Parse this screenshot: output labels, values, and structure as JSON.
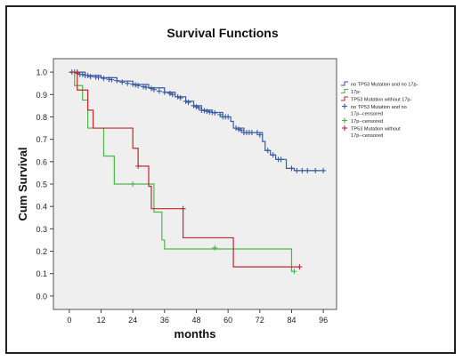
{
  "chart_data": {
    "type": "line",
    "title": "Survival Functions",
    "xlabel": "months",
    "ylabel": "Cum Survival",
    "xlim": [
      -6,
      101
    ],
    "ylim": [
      -0.06,
      1.06
    ],
    "xticks": [
      0,
      12,
      24,
      36,
      48,
      60,
      72,
      84,
      96
    ],
    "yticks": [
      0.0,
      0.1,
      0.2,
      0.3,
      0.4,
      0.5,
      0.6,
      0.7,
      0.8,
      0.9,
      1.0
    ],
    "plot_background": "#efefef",
    "legend_position": "right",
    "series": [
      {
        "name": "no TP53 Mutation and no 17p-",
        "censored_name": "no TP53 Mutation and no 17p--censored",
        "color": "#3b5ba5",
        "step_points": [
          [
            0,
            1.0
          ],
          [
            6,
            0.985
          ],
          [
            12,
            0.975
          ],
          [
            18,
            0.96
          ],
          [
            24,
            0.945
          ],
          [
            30,
            0.93
          ],
          [
            36,
            0.91
          ],
          [
            40,
            0.89
          ],
          [
            44,
            0.87
          ],
          [
            47,
            0.85
          ],
          [
            50,
            0.83
          ],
          [
            54,
            0.82
          ],
          [
            58,
            0.8
          ],
          [
            61,
            0.78
          ],
          [
            62,
            0.75
          ],
          [
            66,
            0.73
          ],
          [
            70,
            0.73
          ],
          [
            73,
            0.69
          ],
          [
            74,
            0.65
          ],
          [
            76,
            0.63
          ],
          [
            78,
            0.61
          ],
          [
            81,
            0.61
          ],
          [
            82,
            0.57
          ],
          [
            85,
            0.56
          ],
          [
            96,
            0.56
          ]
        ],
        "censored": [
          [
            1,
            1.0
          ],
          [
            2,
            1.0
          ],
          [
            3,
            0.995
          ],
          [
            4,
            0.99
          ],
          [
            5,
            0.99
          ],
          [
            6,
            0.985
          ],
          [
            7,
            0.985
          ],
          [
            8,
            0.98
          ],
          [
            10,
            0.978
          ],
          [
            11,
            0.977
          ],
          [
            13,
            0.972
          ],
          [
            15,
            0.968
          ],
          [
            16,
            0.966
          ],
          [
            18,
            0.962
          ],
          [
            20,
            0.955
          ],
          [
            22,
            0.95
          ],
          [
            24,
            0.946
          ],
          [
            25,
            0.943
          ],
          [
            26,
            0.94
          ],
          [
            28,
            0.935
          ],
          [
            29,
            0.932
          ],
          [
            31,
            0.927
          ],
          [
            32,
            0.922
          ],
          [
            34,
            0.915
          ],
          [
            36,
            0.91
          ],
          [
            38,
            0.905
          ],
          [
            39,
            0.9
          ],
          [
            41,
            0.89
          ],
          [
            42,
            0.885
          ],
          [
            44,
            0.87
          ],
          [
            45,
            0.865
          ],
          [
            47,
            0.85
          ],
          [
            48,
            0.845
          ],
          [
            49,
            0.84
          ],
          [
            50,
            0.83
          ],
          [
            51,
            0.828
          ],
          [
            52,
            0.825
          ],
          [
            53,
            0.822
          ],
          [
            54,
            0.82
          ],
          [
            55,
            0.818
          ],
          [
            57,
            0.81
          ],
          [
            58,
            0.8
          ],
          [
            59,
            0.8
          ],
          [
            60,
            0.8
          ],
          [
            63,
            0.75
          ],
          [
            64,
            0.745
          ],
          [
            65,
            0.74
          ],
          [
            66,
            0.73
          ],
          [
            67,
            0.73
          ],
          [
            68,
            0.73
          ],
          [
            69,
            0.73
          ],
          [
            71,
            0.73
          ],
          [
            72,
            0.72
          ],
          [
            75,
            0.65
          ],
          [
            77,
            0.63
          ],
          [
            79,
            0.61
          ],
          [
            80,
            0.61
          ],
          [
            84,
            0.57
          ],
          [
            86,
            0.56
          ],
          [
            88,
            0.56
          ],
          [
            90,
            0.56
          ],
          [
            93,
            0.56
          ],
          [
            96,
            0.56
          ]
        ]
      },
      {
        "name": "17p-",
        "censored_name": "17p--censored",
        "color": "#4cb84c",
        "step_points": [
          [
            0,
            1.0
          ],
          [
            2,
            0.94
          ],
          [
            5,
            0.875
          ],
          [
            7,
            0.75
          ],
          [
            13,
            0.625
          ],
          [
            17,
            0.5
          ],
          [
            32,
            0.375
          ],
          [
            35,
            0.25
          ],
          [
            36,
            0.21
          ],
          [
            84,
            0.11
          ],
          [
            85,
            0.11
          ]
        ],
        "censored": [
          [
            24,
            0.5
          ],
          [
            55,
            0.215
          ],
          [
            85,
            0.11
          ]
        ]
      },
      {
        "name": "TP53 Mutation without 17p-",
        "censored_name": "TP53 Mutation without 17p--censored",
        "color": "#c0282d",
        "step_points": [
          [
            0,
            1.0
          ],
          [
            3,
            0.92
          ],
          [
            7,
            0.83
          ],
          [
            9,
            0.75
          ],
          [
            24,
            0.66
          ],
          [
            26,
            0.58
          ],
          [
            30,
            0.49
          ],
          [
            31,
            0.39
          ],
          [
            43,
            0.26
          ],
          [
            62,
            0.13
          ],
          [
            87,
            0.13
          ]
        ],
        "censored": [
          [
            3,
            1.0
          ],
          [
            26,
            0.58
          ],
          [
            43,
            0.39
          ],
          [
            87,
            0.13
          ]
        ]
      }
    ]
  }
}
